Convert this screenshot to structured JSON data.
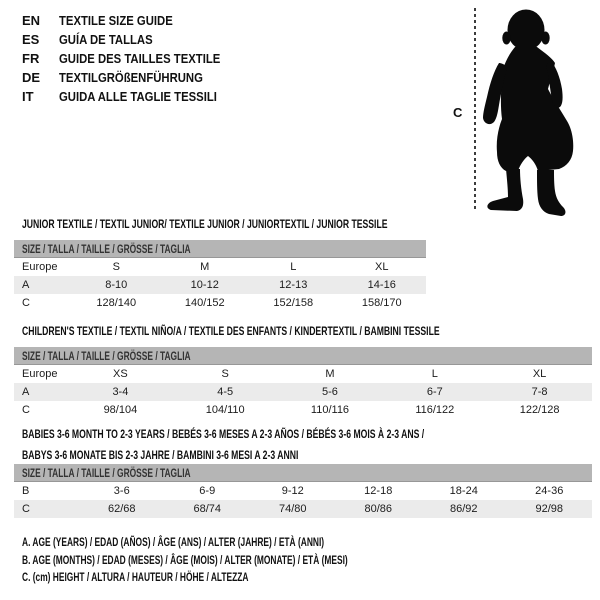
{
  "colors": {
    "band_bg": "#b5b5b5",
    "stripe_bg": "#ebebeb",
    "silhouette": "#0b0b0b",
    "text": "#1a1a1a"
  },
  "language_guide": {
    "items": [
      {
        "code": "EN",
        "title": "TEXTILE SIZE GUIDE"
      },
      {
        "code": "ES",
        "title": "GUÍA DE TALLAS"
      },
      {
        "code": "FR",
        "title": "GUIDE DES TAILLES TEXTILE"
      },
      {
        "code": "DE",
        "title": "TEXTILGRÖßENFÜHRUNG"
      },
      {
        "code": "IT",
        "title": "GUIDA ALLE TAGLIE TESSILI"
      }
    ]
  },
  "figure": {
    "label": "C"
  },
  "sections": [
    {
      "title_lines": [
        "JUNIOR TEXTILE / TEXTIL JUNIOR/ TEXTILE JUNIOR / JUNIORTEXTIL / JUNIOR TESSILE"
      ],
      "table": {
        "size_header": "SIZE / TALLA / TAILLE / GRÖSSE / TAGLIA",
        "rows": [
          {
            "label": "Europe",
            "cells": [
              "S",
              "M",
              "L",
              "XL"
            ],
            "striped": false
          },
          {
            "label": "A",
            "cells": [
              "8-10",
              "10-12",
              "12-13",
              "14-16"
            ],
            "striped": true
          },
          {
            "label": "C",
            "cells": [
              "128/140",
              "140/152",
              "152/158",
              "158/170"
            ],
            "striped": false
          }
        ]
      }
    },
    {
      "title_lines": [
        "CHILDREN'S TEXTILE / TEXTIL NIÑO/A / TEXTILE DES ENFANTS / KINDERTEXTIL / BAMBINI TESSILE"
      ],
      "table": {
        "size_header": "SIZE / TALLA / TAILLE / GRÖSSE / TAGLIA",
        "rows": [
          {
            "label": "Europe",
            "cells": [
              "XS",
              "S",
              "M",
              "L",
              "XL"
            ],
            "striped": false
          },
          {
            "label": "A",
            "cells": [
              "3-4",
              "4-5",
              "5-6",
              "6-7",
              "7-8"
            ],
            "striped": true
          },
          {
            "label": "C",
            "cells": [
              "98/104",
              "104/110",
              "110/116",
              "116/122",
              "122/128"
            ],
            "striped": false
          }
        ]
      }
    },
    {
      "title_lines": [
        "BABIES 3-6 MONTH TO 2-3 YEARS / BEBÉS 3-6 MESES A 2-3 AÑOS / BÉBÉS 3-6 MOIS À 2-3 ANS /",
        "BABYS 3-6 MONATE BIS 2-3 JAHRE / BAMBINI 3-6 MESI A 2-3 ANNI"
      ],
      "table": {
        "size_header": "SIZE / TALLA / TAILLE / GRÖSSE / TAGLIA",
        "rows": [
          {
            "label": "B",
            "cells": [
              "3-6",
              "6-9",
              "9-12",
              "12-18",
              "18-24",
              "24-36"
            ],
            "striped": false
          },
          {
            "label": "C",
            "cells": [
              "62/68",
              "68/74",
              "74/80",
              "80/86",
              "86/92",
              "92/98"
            ],
            "striped": true
          }
        ]
      }
    }
  ],
  "notes": [
    "A. AGE (YEARS) / EDAD (AÑOS) / ÂGE (ANS) / ALTER (JAHRE) / ETÀ (ANNI)",
    "B. AGE (MONTHS) / EDAD (MESES) / ÂGE (MOIS) / ALTER (MONATE) / ETÀ (MESI)",
    "C. (cm) HEIGHT / ALTURA / HAUTEUR / HÖHE / ALTEZZA"
  ]
}
